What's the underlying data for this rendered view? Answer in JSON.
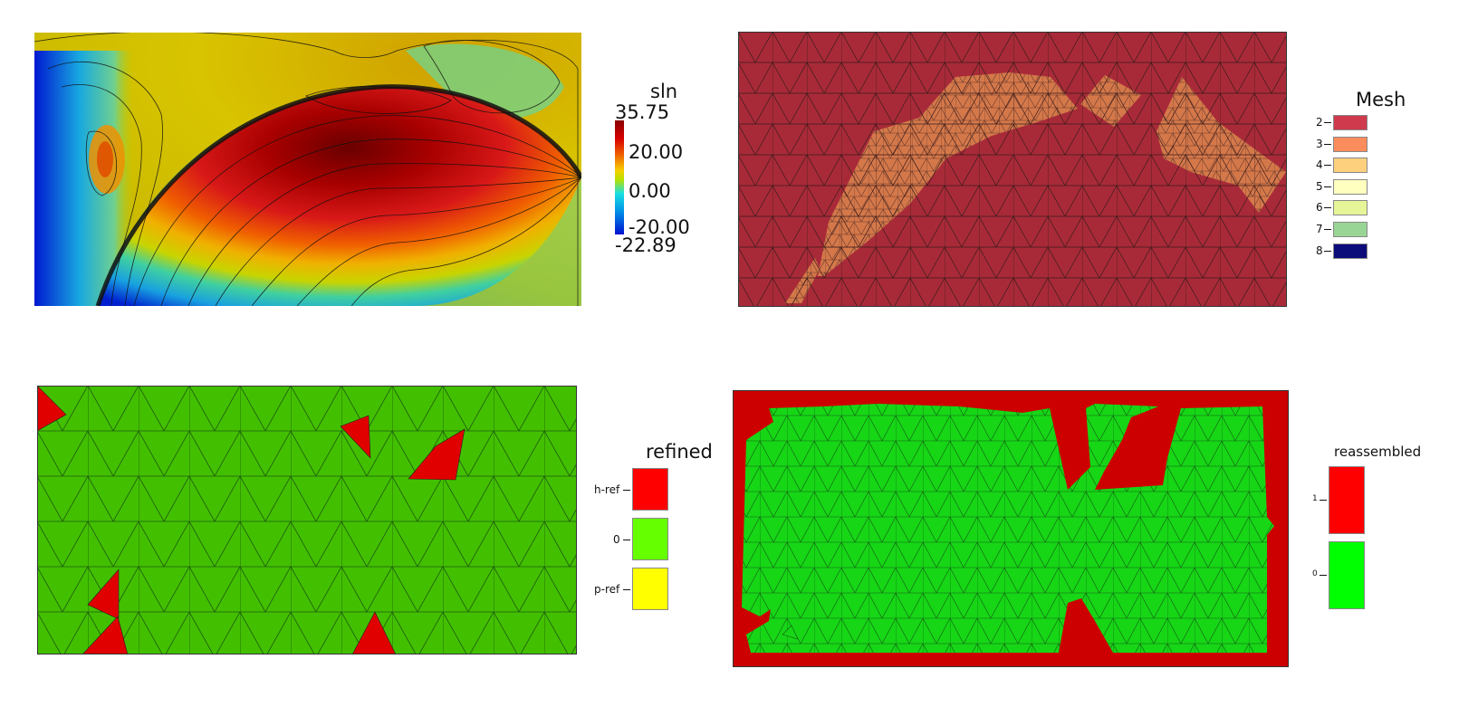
{
  "solution": {
    "legend_title": "sln",
    "max_label": "35.75",
    "tick_labels": [
      "20.00",
      "0.00",
      "-20.00"
    ],
    "min_label": "-22.89",
    "colors": [
      "#7a0000",
      "#d8141a",
      "#f06a00",
      "#f5c800",
      "#d6d600",
      "#1fd0c8",
      "#0b8ed6",
      "#0010c8"
    ]
  },
  "mesh": {
    "legend_title": "Mesh",
    "entries": [
      {
        "label": "2",
        "color": "#cf3a4c"
      },
      {
        "label": "3",
        "color": "#fb8c5c"
      },
      {
        "label": "4",
        "color": "#fdd07e"
      },
      {
        "label": "5",
        "color": "#ffffbf"
      },
      {
        "label": "6",
        "color": "#e6f598"
      },
      {
        "label": "7",
        "color": "#99d594"
      },
      {
        "label": "8",
        "color": "#0c0c7a"
      }
    ]
  },
  "refined": {
    "legend_title": "refined",
    "entries": [
      {
        "label": "h-ref",
        "color": "#ff0000"
      },
      {
        "label": "0",
        "color": "#66ff00"
      },
      {
        "label": "p-ref",
        "color": "#ffff00"
      }
    ]
  },
  "reassembled": {
    "legend_title": "reassembled",
    "entries": [
      {
        "label": "1",
        "color": "#ff0000"
      },
      {
        "label": "0",
        "color": "#00ff00"
      }
    ]
  }
}
